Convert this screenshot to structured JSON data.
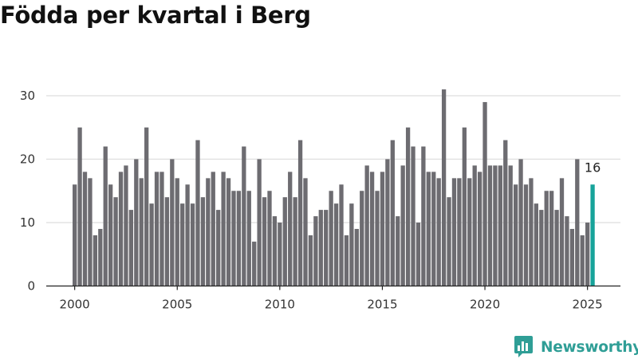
{
  "title": "Födda per kvartal i Berg",
  "brand": {
    "name": "Newsworthy",
    "icon": "newsworthy-logo-icon",
    "color": "#2f9e96"
  },
  "colors": {
    "bar": "#6d6c71",
    "highlight": "#17a39a",
    "grid": "#dddddd",
    "axis": "#222222"
  },
  "chart_data": {
    "type": "bar",
    "title": "Födda per kvartal i Berg",
    "xlabel": "",
    "ylabel": "",
    "ylim": [
      0,
      33
    ],
    "yticks": [
      0,
      10,
      20,
      30
    ],
    "xticks": [
      "2000",
      "2005",
      "2010",
      "2015",
      "2020",
      "2025"
    ],
    "grid": true,
    "x": [
      "2000Q1",
      "2000Q2",
      "2000Q3",
      "2000Q4",
      "2001Q1",
      "2001Q2",
      "2001Q3",
      "2001Q4",
      "2002Q1",
      "2002Q2",
      "2002Q3",
      "2002Q4",
      "2003Q1",
      "2003Q2",
      "2003Q3",
      "2003Q4",
      "2004Q1",
      "2004Q2",
      "2004Q3",
      "2004Q4",
      "2005Q1",
      "2005Q2",
      "2005Q3",
      "2005Q4",
      "2006Q1",
      "2006Q2",
      "2006Q3",
      "2006Q4",
      "2007Q1",
      "2007Q2",
      "2007Q3",
      "2007Q4",
      "2008Q1",
      "2008Q2",
      "2008Q3",
      "2008Q4",
      "2009Q1",
      "2009Q2",
      "2009Q3",
      "2009Q4",
      "2010Q1",
      "2010Q2",
      "2010Q3",
      "2010Q4",
      "2011Q1",
      "2011Q2",
      "2011Q3",
      "2011Q4",
      "2012Q1",
      "2012Q2",
      "2012Q3",
      "2012Q4",
      "2013Q1",
      "2013Q2",
      "2013Q3",
      "2013Q4",
      "2014Q1",
      "2014Q2",
      "2014Q3",
      "2014Q4",
      "2015Q1",
      "2015Q2",
      "2015Q3",
      "2015Q4",
      "2016Q1",
      "2016Q2",
      "2016Q3",
      "2016Q4",
      "2017Q1",
      "2017Q2",
      "2017Q3",
      "2017Q4",
      "2018Q1",
      "2018Q2",
      "2018Q3",
      "2018Q4",
      "2019Q1",
      "2019Q2",
      "2019Q3",
      "2019Q4",
      "2020Q1",
      "2020Q2",
      "2020Q3",
      "2020Q4",
      "2021Q1",
      "2021Q2",
      "2021Q3",
      "2021Q4",
      "2022Q1",
      "2022Q2",
      "2022Q3",
      "2022Q4",
      "2023Q1",
      "2023Q2",
      "2023Q3",
      "2023Q4",
      "2024Q1",
      "2024Q2",
      "2024Q3",
      "2024Q4",
      "2025Q1",
      "2025Q2"
    ],
    "values": [
      16,
      25,
      18,
      17,
      8,
      9,
      22,
      16,
      14,
      18,
      19,
      12,
      20,
      17,
      25,
      13,
      18,
      18,
      14,
      20,
      17,
      13,
      16,
      13,
      23,
      14,
      17,
      18,
      12,
      18,
      17,
      15,
      15,
      22,
      15,
      7,
      20,
      14,
      15,
      11,
      10,
      14,
      18,
      14,
      23,
      17,
      8,
      11,
      12,
      12,
      15,
      13,
      16,
      8,
      13,
      9,
      15,
      19,
      18,
      15,
      18,
      20,
      23,
      11,
      19,
      25,
      22,
      10,
      22,
      18,
      18,
      17,
      31,
      14,
      17,
      17,
      25,
      17,
      19,
      18,
      29,
      19,
      19,
      19,
      23,
      19,
      16,
      20,
      16,
      17,
      13,
      12,
      15,
      15,
      12,
      17,
      11,
      9,
      20,
      8,
      10,
      16
    ],
    "highlight": {
      "x": "2025Q2",
      "value": 16,
      "label": "16"
    }
  }
}
